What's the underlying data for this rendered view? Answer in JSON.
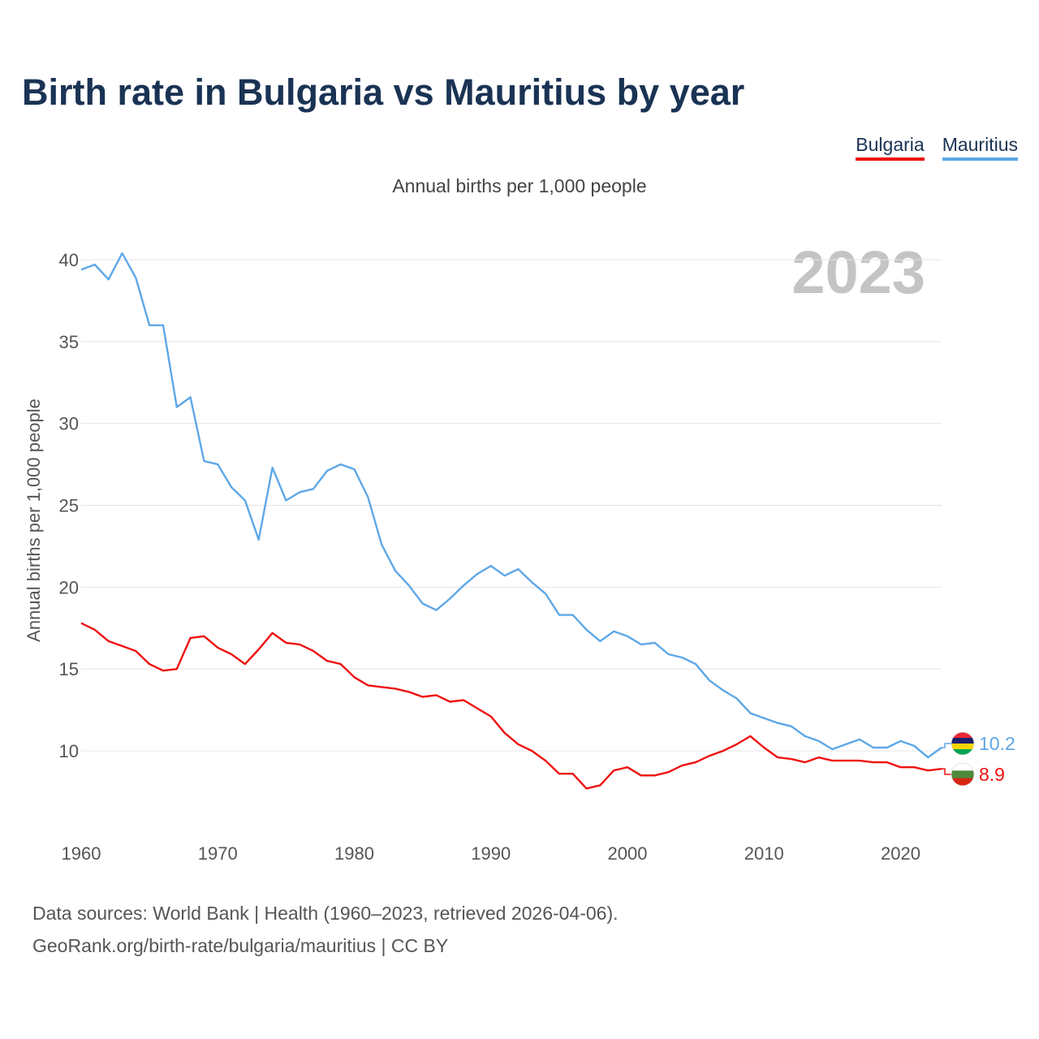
{
  "title": "Birth rate in Bulgaria vs Mauritius by year",
  "subtitle": "Annual births per 1,000 people",
  "year_watermark": "2023",
  "source_line1": "Data sources: World Bank | Health (1960–2023, retrieved 2026-04-06).",
  "source_line2": "GeoRank.org/birth-rate/bulgaria/mauritius | CC BY",
  "chart_data": {
    "type": "line",
    "title": "Birth rate in Bulgaria vs Mauritius by year",
    "subtitle": "Annual births per 1,000 people",
    "xlabel": "",
    "ylabel": "Annual births per 1,000 people",
    "xlim": [
      1960,
      2023
    ],
    "ylim": [
      5,
      41
    ],
    "grid": true,
    "legend_position": "top-right",
    "x_ticks": [
      1960,
      1970,
      1980,
      1990,
      2000,
      2010,
      2020
    ],
    "y_ticks": [
      10,
      15,
      20,
      25,
      30,
      35,
      40
    ],
    "x_start": 1960,
    "series": [
      {
        "name": "Bulgaria",
        "color": "#ee1111",
        "end_label": "8.9",
        "flag_colors": [
          "#ffffff",
          "#4e8a3a",
          "#d62612"
        ],
        "values": [
          17.8,
          17.4,
          16.7,
          16.4,
          16.1,
          15.3,
          14.9,
          15.0,
          16.9,
          17.0,
          16.3,
          15.9,
          15.3,
          16.2,
          17.2,
          16.6,
          16.5,
          16.1,
          15.5,
          15.3,
          14.5,
          14.0,
          13.9,
          13.8,
          13.6,
          13.3,
          13.4,
          13.0,
          13.1,
          12.6,
          12.1,
          11.1,
          10.4,
          10.0,
          9.4,
          8.6,
          8.6,
          7.7,
          7.9,
          8.8,
          9.0,
          8.5,
          8.5,
          8.7,
          9.1,
          9.3,
          9.7,
          10.0,
          10.4,
          10.9,
          10.2,
          9.6,
          9.5,
          9.3,
          9.6,
          9.4,
          9.4,
          9.4,
          9.3,
          9.3,
          9.0,
          9.0,
          8.8,
          8.9
        ]
      },
      {
        "name": "Mauritius",
        "color": "#5ea7e6",
        "end_label": "10.2",
        "flag_colors": [
          "#ea2839",
          "#1a206d",
          "#ffd500",
          "#00a551"
        ],
        "values": [
          39.4,
          39.7,
          38.8,
          40.4,
          38.9,
          36.0,
          36.0,
          31.0,
          31.6,
          27.7,
          27.5,
          26.1,
          25.3,
          22.9,
          27.3,
          25.3,
          25.8,
          26.0,
          27.1,
          27.5,
          27.2,
          25.5,
          22.6,
          21.0,
          20.1,
          19.0,
          18.6,
          19.3,
          20.1,
          20.8,
          21.3,
          20.7,
          21.1,
          20.3,
          19.6,
          18.3,
          18.3,
          17.4,
          16.7,
          17.3,
          17.0,
          16.5,
          16.6,
          15.9,
          15.7,
          15.3,
          14.3,
          13.7,
          13.2,
          12.3,
          12.0,
          11.7,
          11.5,
          10.9,
          10.6,
          10.1,
          10.4,
          10.7,
          10.2,
          10.2,
          10.6,
          10.3,
          9.6,
          10.2
        ]
      }
    ]
  }
}
